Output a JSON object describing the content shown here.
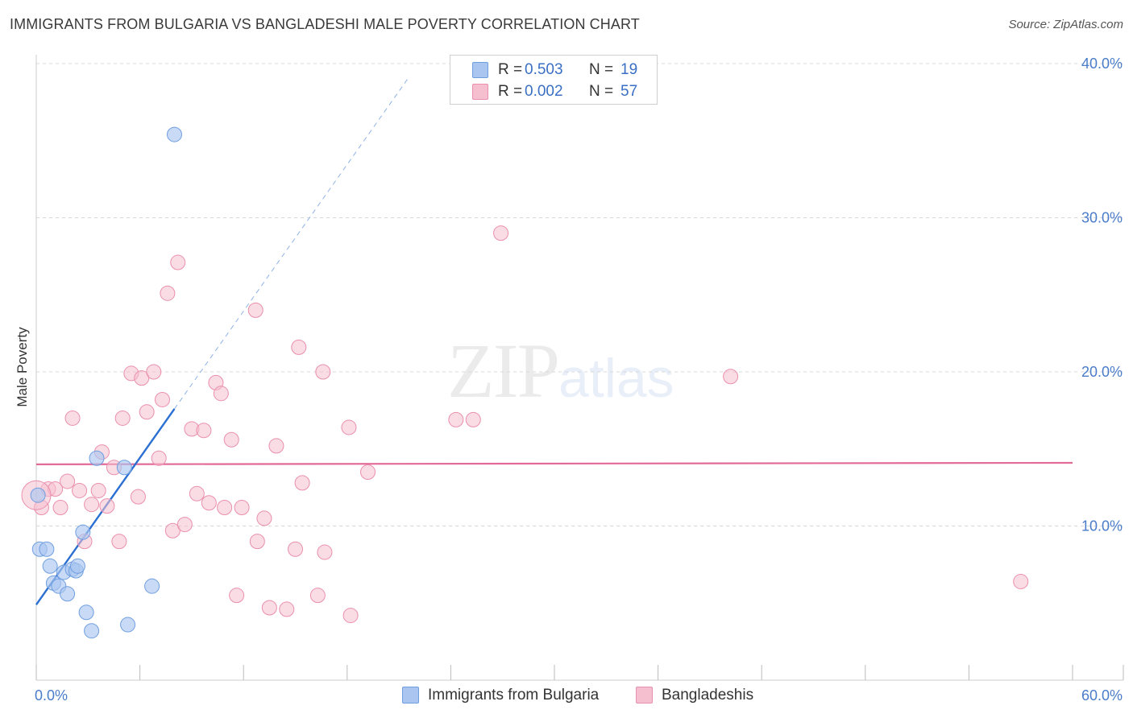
{
  "header": {
    "title": "IMMIGRANTS FROM BULGARIA VS BANGLADESHI MALE POVERTY CORRELATION CHART",
    "source": "Source: ZipAtlas.com"
  },
  "watermark": {
    "zip": "ZIP",
    "atlas": "atlas"
  },
  "legend": {
    "rows": [
      {
        "r_label": "R =",
        "r_value": "0.503",
        "n_label": "N =",
        "n_value": "19"
      },
      {
        "r_label": "R =",
        "r_value": "0.002",
        "n_label": "N =",
        "n_value": "57"
      }
    ]
  },
  "bottom_legend": {
    "series_a": "Immigrants from Bulgaria",
    "series_b": "Bangladeshis"
  },
  "colors": {
    "blue_fill": "#aac6f0",
    "blue_stroke": "#6f9ee0",
    "blue_line": "#2a6fd1",
    "pink_fill": "#f6bfd0",
    "pink_stroke": "#ea8fad",
    "pink_line": "#e26a98",
    "grid": "#d8d8d8",
    "tick_text": "#4a7cc9"
  },
  "chart_data": {
    "type": "scatter",
    "title": "IMMIGRANTS FROM BULGARIA VS BANGLADESHI MALE POVERTY CORRELATION CHART",
    "xlabel": "",
    "ylabel": "Male Poverty",
    "xlim": [
      0,
      60
    ],
    "ylim": [
      0,
      42
    ],
    "x_tick_labels": [
      "0.0%",
      "60.0%"
    ],
    "y_ticks": [
      10,
      20,
      30,
      40
    ],
    "y_tick_labels": [
      "10.0%",
      "20.0%",
      "30.0%",
      "40.0%"
    ],
    "series": [
      {
        "name": "Immigrants from Bulgaria",
        "R": 0.503,
        "N": 19,
        "trend": {
          "x0": 0,
          "y0": 4.9,
          "x1": 8.0,
          "y1": 17.6,
          "dash_to_x": 21.5,
          "dash_to_y": 39.0
        },
        "points": [
          [
            0.1,
            12.0
          ],
          [
            0.2,
            8.5
          ],
          [
            0.6,
            8.5
          ],
          [
            0.8,
            7.4
          ],
          [
            1.0,
            6.3
          ],
          [
            1.3,
            6.1
          ],
          [
            1.6,
            7.0
          ],
          [
            1.8,
            5.6
          ],
          [
            2.1,
            7.2
          ],
          [
            2.3,
            7.1
          ],
          [
            2.4,
            7.4
          ],
          [
            2.7,
            9.6
          ],
          [
            2.9,
            4.4
          ],
          [
            3.2,
            3.2
          ],
          [
            3.5,
            14.4
          ],
          [
            5.1,
            13.8
          ],
          [
            5.3,
            3.6
          ],
          [
            6.7,
            6.1
          ],
          [
            8.0,
            35.4
          ]
        ]
      },
      {
        "name": "Bangladeshis",
        "R": 0.002,
        "N": 57,
        "trend": {
          "x0": 0,
          "y0": 14.0,
          "x1": 60,
          "y1": 14.1
        },
        "points": [
          [
            0.3,
            11.2
          ],
          [
            0.7,
            12.4
          ],
          [
            1.1,
            12.4
          ],
          [
            1.4,
            11.2
          ],
          [
            1.8,
            12.9
          ],
          [
            2.1,
            17.0
          ],
          [
            2.5,
            12.3
          ],
          [
            2.8,
            9.0
          ],
          [
            3.2,
            11.4
          ],
          [
            3.6,
            12.3
          ],
          [
            3.8,
            14.8
          ],
          [
            4.1,
            11.3
          ],
          [
            4.5,
            13.8
          ],
          [
            4.8,
            9.0
          ],
          [
            5.0,
            17.0
          ],
          [
            5.5,
            19.9
          ],
          [
            5.9,
            11.9
          ],
          [
            6.1,
            19.6
          ],
          [
            6.4,
            17.4
          ],
          [
            6.8,
            20.0
          ],
          [
            7.1,
            14.4
          ],
          [
            7.3,
            18.2
          ],
          [
            7.6,
            25.1
          ],
          [
            7.9,
            9.7
          ],
          [
            8.2,
            27.1
          ],
          [
            8.6,
            10.1
          ],
          [
            9.0,
            16.3
          ],
          [
            9.3,
            12.1
          ],
          [
            9.7,
            16.2
          ],
          [
            10.0,
            11.5
          ],
          [
            10.4,
            19.3
          ],
          [
            10.7,
            18.6
          ],
          [
            10.9,
            11.2
          ],
          [
            11.3,
            15.6
          ],
          [
            11.6,
            5.5
          ],
          [
            11.9,
            11.2
          ],
          [
            12.7,
            24.0
          ],
          [
            12.8,
            9.0
          ],
          [
            13.2,
            10.5
          ],
          [
            13.5,
            4.7
          ],
          [
            13.9,
            15.2
          ],
          [
            14.5,
            4.6
          ],
          [
            15.0,
            8.5
          ],
          [
            15.2,
            21.6
          ],
          [
            15.4,
            12.8
          ],
          [
            16.3,
            5.5
          ],
          [
            16.6,
            20.0
          ],
          [
            16.7,
            8.3
          ],
          [
            18.1,
            16.4
          ],
          [
            18.2,
            4.2
          ],
          [
            19.2,
            13.5
          ],
          [
            24.3,
            16.9
          ],
          [
            25.3,
            16.9
          ],
          [
            26.9,
            29.0
          ],
          [
            40.2,
            19.7
          ],
          [
            57.0,
            6.4
          ],
          [
            0.0,
            12.0
          ]
        ]
      }
    ]
  }
}
